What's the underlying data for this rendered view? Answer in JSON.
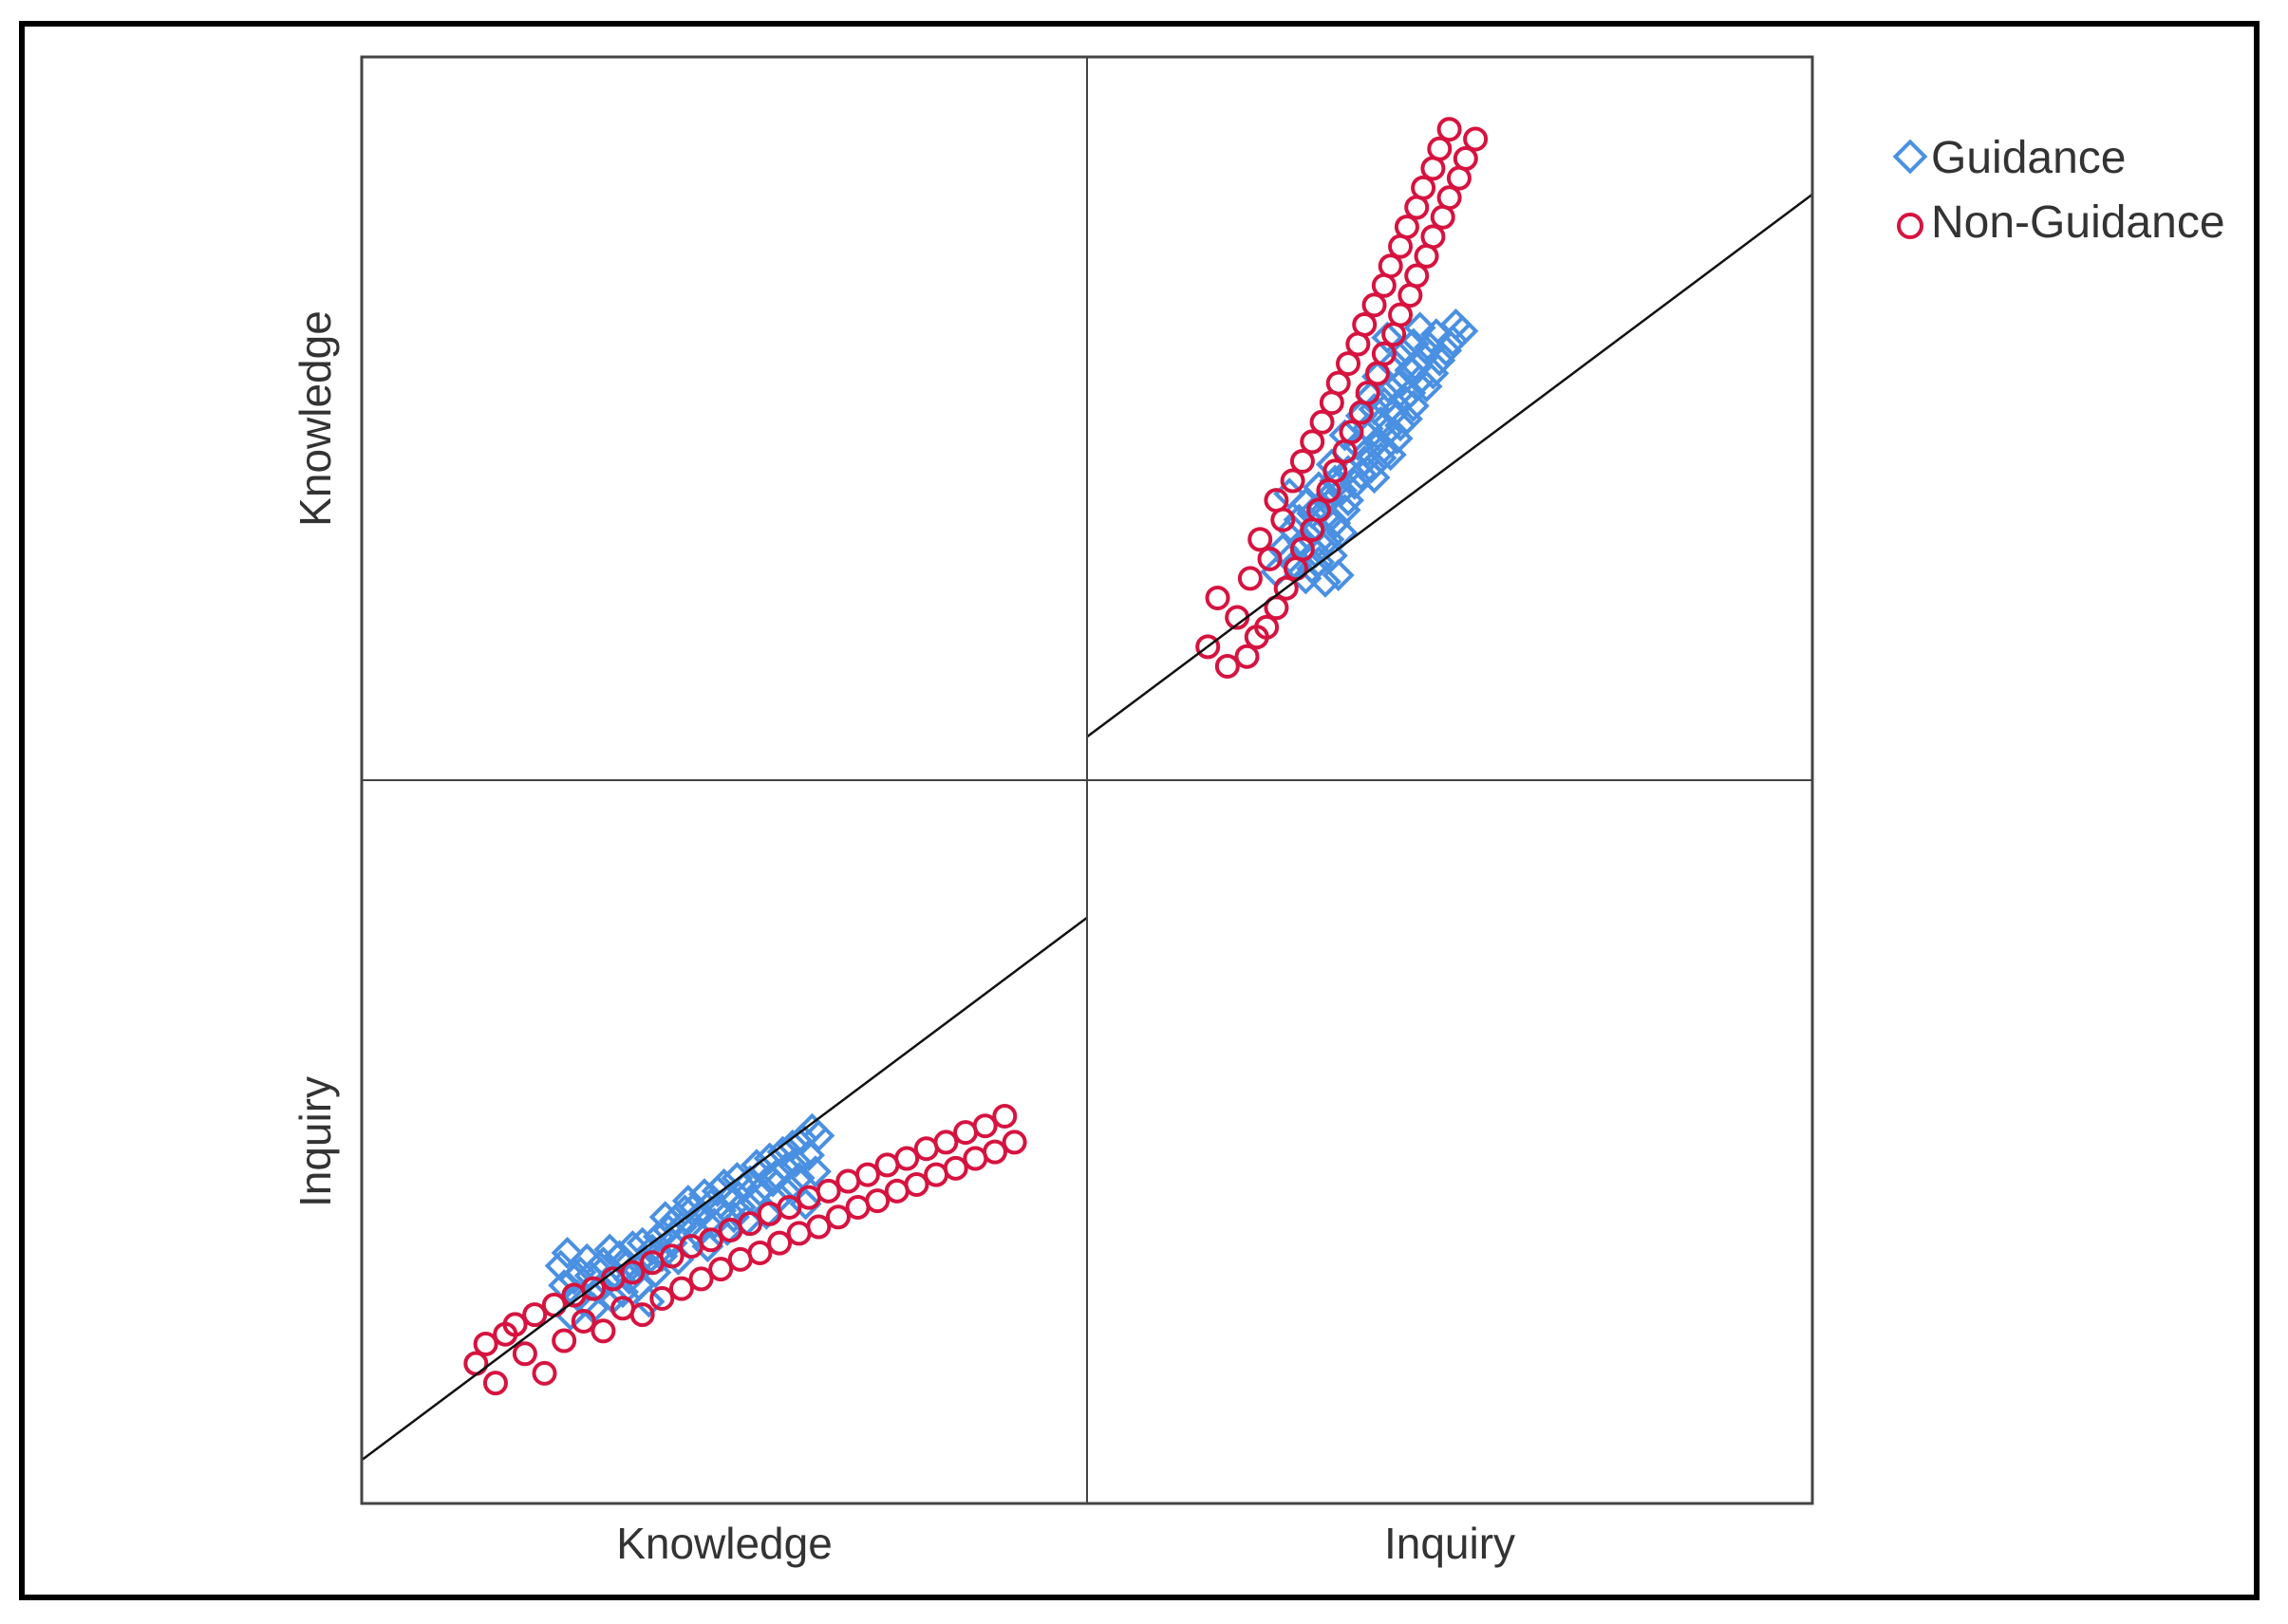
{
  "chart_data": {
    "type": "scatter",
    "subtype": "scatterplot-matrix",
    "variables": [
      "Knowledge",
      "Inquiry"
    ],
    "row_labels": [
      "Knowledge",
      "Inquiry"
    ],
    "col_labels": [
      "Knowledge",
      "Inquiry"
    ],
    "legend": {
      "position": "top-right",
      "entries": [
        {
          "name": "Guidance",
          "marker": "diamond",
          "color": "#4a90e2"
        },
        {
          "name": "Non-Guidance",
          "marker": "circle",
          "color": "#d6133f"
        }
      ]
    },
    "axis_range": {
      "Knowledge": [
        0,
        100
      ],
      "Inquiry": [
        0,
        100
      ]
    },
    "fit_line": {
      "intercept": 6,
      "slope": 0.75
    },
    "grid": false,
    "series": [
      {
        "name": "Guidance",
        "points": [
          [
            61,
            73
          ],
          [
            62,
            67
          ],
          [
            63,
            77
          ],
          [
            64,
            58
          ],
          [
            65,
            69
          ],
          [
            66,
            64
          ],
          [
            67,
            71
          ],
          [
            68,
            62
          ],
          [
            69,
            75
          ],
          [
            70,
            70
          ],
          [
            71,
            60
          ],
          [
            72,
            72
          ],
          [
            73,
            66
          ],
          [
            74,
            74
          ],
          [
            75,
            68
          ],
          [
            76,
            78
          ],
          [
            77,
            63
          ],
          [
            78,
            70
          ],
          [
            79,
            76
          ],
          [
            80,
            65
          ],
          [
            81,
            73
          ],
          [
            82,
            69
          ],
          [
            83,
            79
          ],
          [
            84,
            72
          ],
          [
            85,
            67
          ],
          [
            86,
            80
          ],
          [
            87,
            74
          ],
          [
            88,
            62
          ],
          [
            89,
            78
          ],
          [
            90,
            71
          ],
          [
            91,
            82
          ],
          [
            92,
            76
          ],
          [
            93,
            88
          ],
          [
            94,
            84
          ],
          [
            95,
            80
          ],
          [
            96,
            87
          ],
          [
            97,
            75
          ],
          [
            98,
            85
          ],
          [
            99,
            90
          ],
          [
            100,
            93
          ],
          [
            101,
            86
          ],
          [
            102,
            91
          ],
          [
            103,
            83
          ],
          [
            104,
            89
          ],
          [
            105,
            95
          ],
          [
            106,
            79
          ],
          [
            107,
            92
          ],
          [
            108,
            86
          ],
          [
            109,
            96
          ],
          [
            110,
            90
          ],
          [
            111,
            98
          ],
          [
            112,
            84
          ],
          [
            113,
            94
          ],
          [
            114,
            88
          ],
          [
            115,
            100
          ],
          [
            116,
            91
          ],
          [
            117,
            97
          ],
          [
            118,
            87
          ],
          [
            119,
            99
          ],
          [
            120,
            93
          ],
          [
            121,
            104
          ],
          [
            122,
            96
          ],
          [
            123,
            102
          ],
          [
            124,
            89
          ],
          [
            125,
            106
          ],
          [
            126,
            99
          ],
          [
            127,
            101
          ],
          [
            128,
            94
          ],
          [
            129,
            108
          ],
          [
            130,
            103
          ],
          [
            131,
            97
          ],
          [
            132,
            110
          ],
          [
            133,
            105
          ],
          [
            134,
            100
          ],
          [
            135,
            112
          ],
          [
            136,
            92
          ],
          [
            137,
            107
          ],
          [
            138,
            115
          ],
          [
            139,
            102
          ],
          [
            140,
            113
          ]
        ]
      },
      {
        "name": "Non-Guidance",
        "points": [
          [
            35,
            43
          ],
          [
            38,
            49
          ],
          [
            41,
            37
          ],
          [
            44,
            52
          ],
          [
            47,
            55
          ],
          [
            50,
            46
          ],
          [
            53,
            58
          ],
          [
            56,
            40
          ],
          [
            59,
            61
          ],
          [
            62,
            50
          ],
          [
            65,
            64
          ],
          [
            68,
            56
          ],
          [
            71,
            66
          ],
          [
            74,
            53
          ],
          [
            77,
            69
          ],
          [
            80,
            60
          ],
          [
            83,
            71
          ],
          [
            86,
            58
          ],
          [
            89,
            74
          ],
          [
            92,
            63
          ],
          [
            95,
            76
          ],
          [
            98,
            66
          ],
          [
            101,
            79
          ],
          [
            104,
            69
          ],
          [
            107,
            81
          ],
          [
            110,
            72
          ],
          [
            113,
            84
          ],
          [
            116,
            75
          ],
          [
            119,
            86
          ],
          [
            122,
            77
          ],
          [
            125,
            89
          ],
          [
            128,
            80
          ],
          [
            131,
            91
          ],
          [
            134,
            83
          ],
          [
            137,
            94
          ],
          [
            140,
            85
          ],
          [
            143,
            96
          ],
          [
            146,
            88
          ],
          [
            149,
            99
          ],
          [
            152,
            91
          ],
          [
            155,
            101
          ],
          [
            158,
            93
          ],
          [
            161,
            104
          ],
          [
            164,
            96
          ],
          [
            167,
            106
          ],
          [
            170,
            98
          ],
          [
            173,
            109
          ],
          [
            176,
            101
          ],
          [
            179,
            111
          ],
          [
            182,
            103
          ],
          [
            185,
            114
          ],
          [
            188,
            106
          ],
          [
            191,
            116
          ],
          [
            194,
            108
          ],
          [
            197,
            119
          ],
          [
            200,
            111
          ]
        ]
      }
    ]
  }
}
